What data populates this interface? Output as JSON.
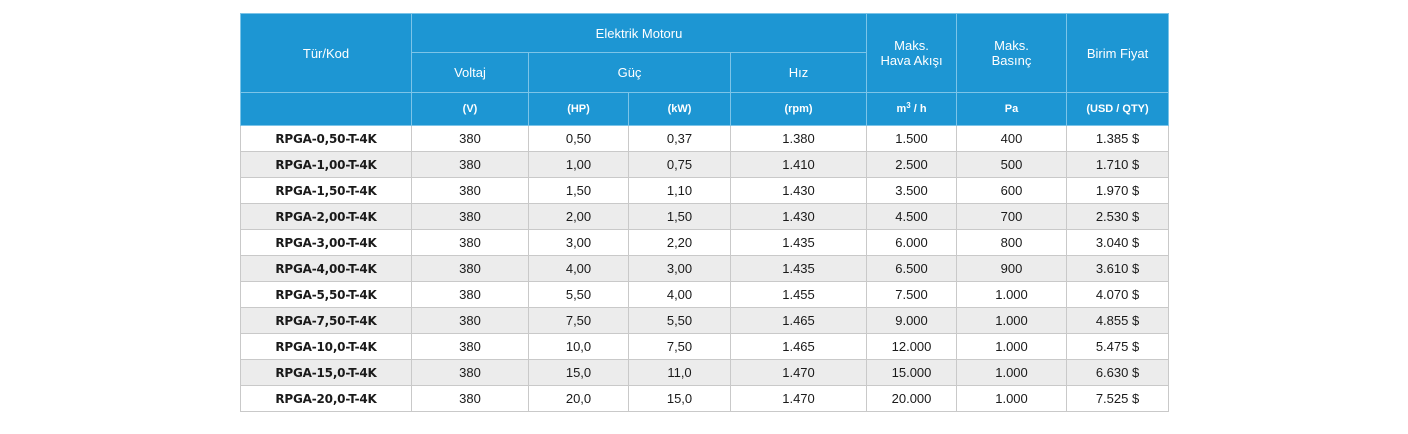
{
  "header": {
    "type_code": "Tür/Kod",
    "motor_group": "Elektrik Motoru",
    "voltage": "Voltaj",
    "power": "Güç",
    "speed": "Hız",
    "max_airflow": "Maks.\nHava Akışı",
    "max_pressure": "Maks.\nBasınç",
    "unit_price": "Birim Fiyat"
  },
  "units": {
    "voltage": "(V)",
    "power_hp": "(HP)",
    "power_kw": "(kW)",
    "speed": "(rpm)",
    "airflow_base": "m",
    "airflow_exp": "3",
    "airflow_rest": " / h",
    "pressure": "Pa",
    "price": "(USD / QTY)"
  },
  "rows": [
    {
      "code": "RPGA-0,50-T-4K",
      "voltage": "380",
      "hp": "0,50",
      "kw": "0,37",
      "rpm": "1.380",
      "airflow": "1.500",
      "pressure": "400",
      "price": "1.385 $"
    },
    {
      "code": "RPGA-1,00-T-4K",
      "voltage": "380",
      "hp": "1,00",
      "kw": "0,75",
      "rpm": "1.410",
      "airflow": "2.500",
      "pressure": "500",
      "price": "1.710 $"
    },
    {
      "code": "RPGA-1,50-T-4K",
      "voltage": "380",
      "hp": "1,50",
      "kw": "1,10",
      "rpm": "1.430",
      "airflow": "3.500",
      "pressure": "600",
      "price": "1.970 $"
    },
    {
      "code": "RPGA-2,00-T-4K",
      "voltage": "380",
      "hp": "2,00",
      "kw": "1,50",
      "rpm": "1.430",
      "airflow": "4.500",
      "pressure": "700",
      "price": "2.530 $"
    },
    {
      "code": "RPGA-3,00-T-4K",
      "voltage": "380",
      "hp": "3,00",
      "kw": "2,20",
      "rpm": "1.435",
      "airflow": "6.000",
      "pressure": "800",
      "price": "3.040 $"
    },
    {
      "code": "RPGA-4,00-T-4K",
      "voltage": "380",
      "hp": "4,00",
      "kw": "3,00",
      "rpm": "1.435",
      "airflow": "6.500",
      "pressure": "900",
      "price": "3.610 $"
    },
    {
      "code": "RPGA-5,50-T-4K",
      "voltage": "380",
      "hp": "5,50",
      "kw": "4,00",
      "rpm": "1.455",
      "airflow": "7.500",
      "pressure": "1.000",
      "price": "4.070 $"
    },
    {
      "code": "RPGA-7,50-T-4K",
      "voltage": "380",
      "hp": "7,50",
      "kw": "5,50",
      "rpm": "1.465",
      "airflow": "9.000",
      "pressure": "1.000",
      "price": "4.855 $"
    },
    {
      "code": "RPGA-10,0-T-4K",
      "voltage": "380",
      "hp": "10,0",
      "kw": "7,50",
      "rpm": "1.465",
      "airflow": "12.000",
      "pressure": "1.000",
      "price": "5.475 $"
    },
    {
      "code": "RPGA-15,0-T-4K",
      "voltage": "380",
      "hp": "15,0",
      "kw": "11,0",
      "rpm": "1.470",
      "airflow": "15.000",
      "pressure": "1.000",
      "price": "6.630 $"
    },
    {
      "code": "RPGA-20,0-T-4K",
      "voltage": "380",
      "hp": "20,0",
      "kw": "15,0",
      "rpm": "1.470",
      "airflow": "20.000",
      "pressure": "1.000",
      "price": "7.525 $"
    }
  ],
  "colors": {
    "header_bg": "#1d96d3",
    "row_alt_bg": "#ececec",
    "border": "#c9c9c9"
  }
}
